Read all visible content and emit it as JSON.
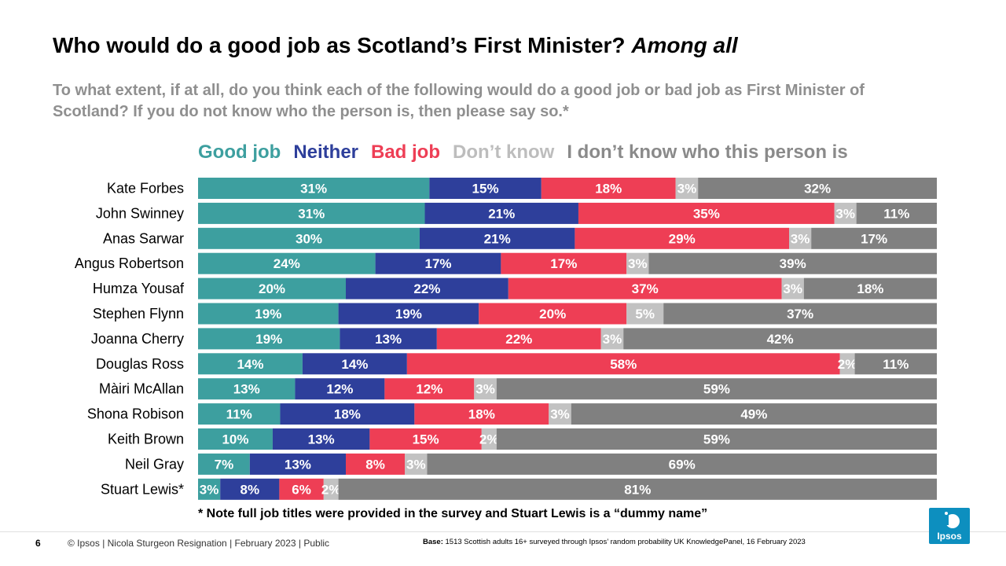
{
  "header": {
    "title_main": "Who would do a good job as Scotland’s First Minister?",
    "title_suffix": "Among all",
    "subtitle": "To what extent, if at all, do you think each of the following would do a good job or bad job as First Minister of Scotland? If you do not know who the person is, then please say so.*"
  },
  "chart_data": {
    "type": "bar",
    "orientation": "horizontal-stacked-100",
    "categories": [
      "Kate Forbes",
      "John Swinney",
      "Anas Sarwar",
      "Angus Robertson",
      "Humza Yousaf",
      "Stephen Flynn",
      "Joanna Cherry",
      "Douglas Ross",
      "Màiri McAllan",
      "Shona Robison",
      "Keith Brown",
      "Neil Gray",
      "Stuart Lewis*"
    ],
    "series": [
      {
        "name": "Good job",
        "color": "#3d9f9f",
        "values": [
          31,
          31,
          30,
          24,
          20,
          19,
          19,
          14,
          13,
          11,
          10,
          7,
          3
        ]
      },
      {
        "name": "Neither",
        "color": "#2e3f9b",
        "values": [
          15,
          21,
          21,
          17,
          22,
          19,
          13,
          14,
          12,
          18,
          13,
          13,
          8
        ]
      },
      {
        "name": "Bad job",
        "color": "#ee3e55",
        "values": [
          18,
          35,
          29,
          17,
          37,
          20,
          22,
          58,
          12,
          18,
          15,
          8,
          6
        ]
      },
      {
        "name": "Don’t know",
        "color": "#c2c2c2",
        "values": [
          3,
          3,
          3,
          3,
          3,
          5,
          3,
          2,
          3,
          3,
          2,
          3,
          2
        ]
      },
      {
        "name": "I don’t know who this person is",
        "color": "#808080",
        "values": [
          32,
          11,
          17,
          39,
          18,
          37,
          42,
          11,
          59,
          49,
          59,
          69,
          81
        ]
      }
    ],
    "legend_position": "top",
    "unit": "%"
  },
  "footnote": "* Note full job titles were provided in the survey and Stuart Lewis is a “dummy name”",
  "footer": {
    "page_number": "6",
    "text": "© Ipsos | Nicola Sturgeon Resignation | February 2023 | Public",
    "base_label": "Base:",
    "base_text": "1513 Scottish adults 16+ surveyed through Ipsos’ random probability UK KnowledgePanel, 16 February 2023",
    "logo_text": "Ipsos"
  }
}
